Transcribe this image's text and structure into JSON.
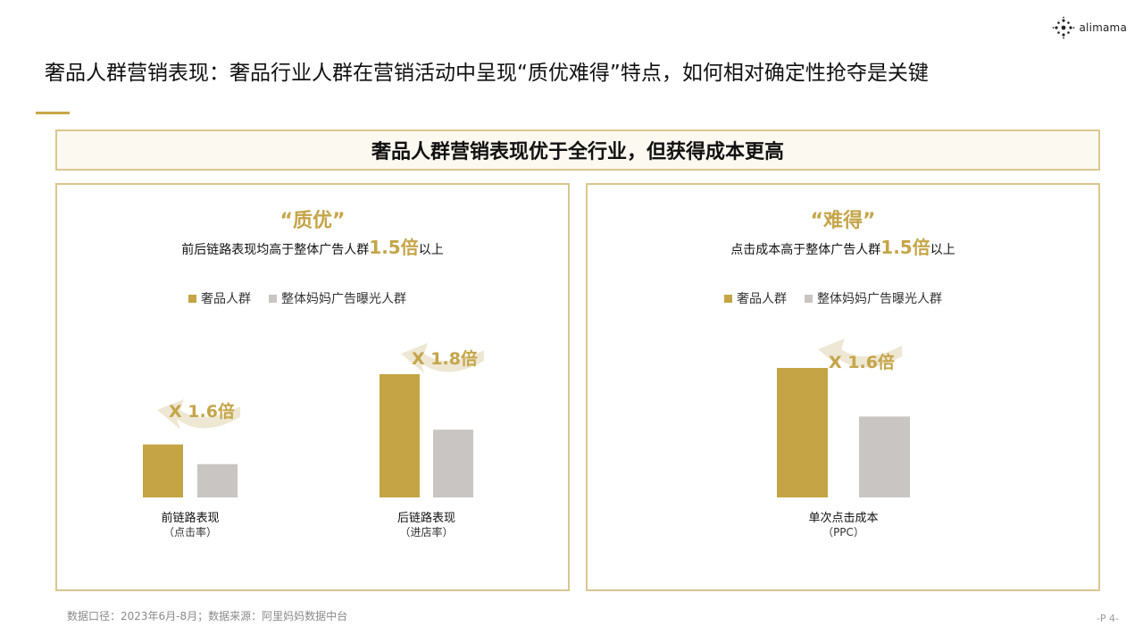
{
  "brand": {
    "logo_text": "alimama"
  },
  "page_title": "奢品人群营销表现：奢品行业人群在营销活动中呈现“质优难得”特点，如何相对确定性抢夺是关键",
  "banner": "奢品人群营销表现优于全行业，但获得成本更高",
  "colors": {
    "luxury": "#c4a445",
    "overall": "#c9c5c2",
    "accent": "#c5a549",
    "arrow": "#ede7d3"
  },
  "left_panel": {
    "heading": "“质优”",
    "sub_before": "前后链路表现均高于整体广告人群",
    "sub_highlight": "1.5倍",
    "sub_after": "以上",
    "legend": [
      "奢品人群",
      "整体妈妈广告曝光人群"
    ]
  },
  "right_panel": {
    "heading": "“难得”",
    "sub_before": "点击成本高于整体广告人群",
    "sub_highlight": "1.5倍",
    "sub_after": "以上",
    "legend": [
      "奢品人群",
      "整体妈妈广告曝光人群"
    ]
  },
  "chart_data": [
    {
      "type": "bar",
      "categories": [
        {
          "name": "前链路表现",
          "note": "（点击率）"
        },
        {
          "name": "后链路表现",
          "note": "（进店率）"
        }
      ],
      "series": [
        {
          "name": "奢品人群",
          "values": [
            1.6,
            1.8
          ]
        },
        {
          "name": "整体妈妈广告曝光人群",
          "values": [
            1.0,
            1.0
          ]
        }
      ],
      "annotations": [
        "X 1.6倍",
        "X 1.8倍"
      ],
      "relative_scale": [
        0.43,
        1.0,
        0.27,
        0.55
      ]
    },
    {
      "type": "bar",
      "categories": [
        {
          "name": "单次点击成本",
          "note": "（PPC）"
        }
      ],
      "series": [
        {
          "name": "奢品人群",
          "values": [
            1.6
          ]
        },
        {
          "name": "整体妈妈广告曝光人群",
          "values": [
            1.0
          ]
        }
      ],
      "annotations": [
        "X 1.6倍"
      ]
    }
  ],
  "footer": "数据口径：2023年6月-8月；数据来源：阿里妈妈数据中台",
  "page_number": "-P 4-"
}
